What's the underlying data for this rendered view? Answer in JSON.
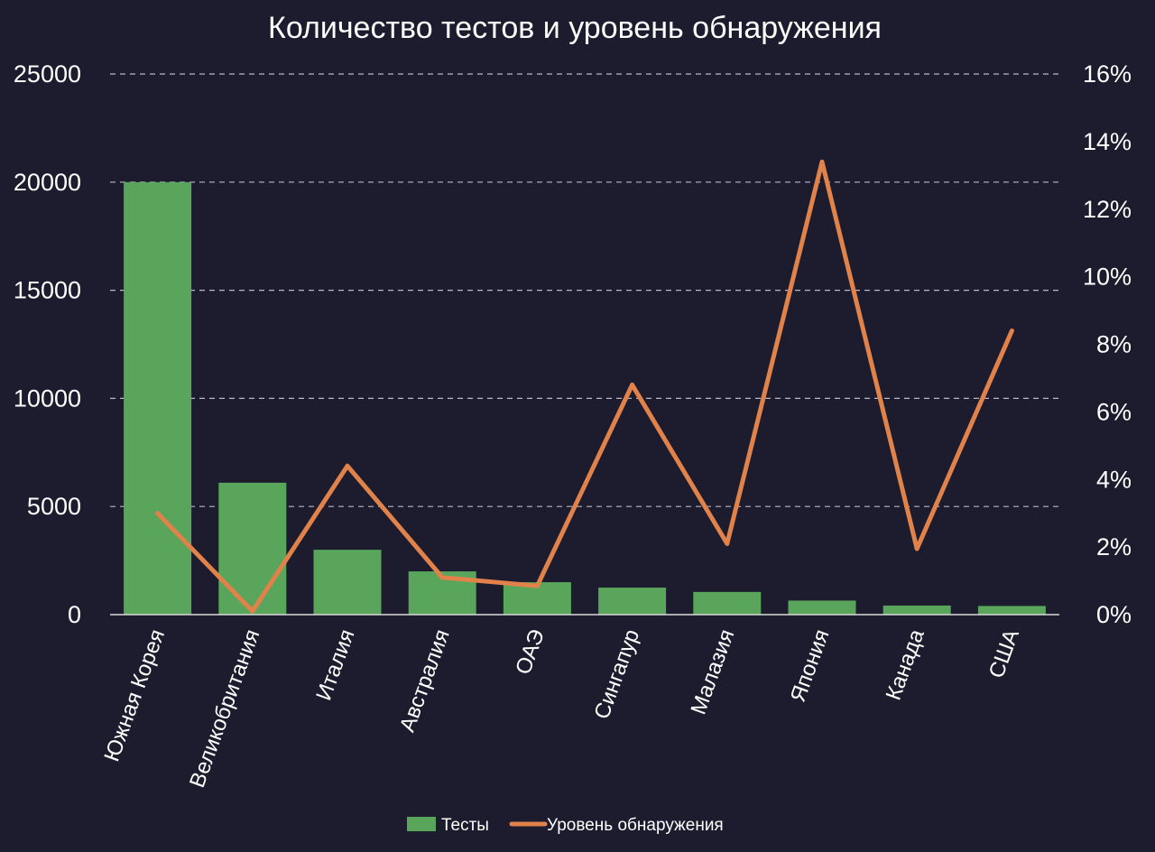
{
  "chart_data": {
    "type": "bar",
    "title": "Количество тестов и уровень обнаружения",
    "categories": [
      "Южная Корея",
      "Великобритания",
      "Италия",
      "Австралия",
      "ОАЭ",
      "Сингапур",
      "Малазия",
      "Япония",
      "Канада",
      "США"
    ],
    "series": [
      {
        "name": "Тесты",
        "type": "bar",
        "axis": "left",
        "color": "#5aa55c",
        "values": [
          20000,
          6100,
          3000,
          2000,
          1500,
          1250,
          1050,
          650,
          420,
          400
        ]
      },
      {
        "name": "Уровень обнаружения",
        "type": "line",
        "axis": "right",
        "color": "#e0824a",
        "values": [
          3.0,
          0.1,
          4.4,
          1.1,
          0.85,
          6.8,
          2.1,
          13.4,
          1.95,
          8.4
        ]
      }
    ],
    "y_left": {
      "min": 0,
      "max": 25000,
      "ticks": [
        "0",
        "5000",
        "10000",
        "15000",
        "20000",
        "25000"
      ],
      "tick_values": [
        0,
        5000,
        10000,
        15000,
        20000,
        25000
      ]
    },
    "y_right": {
      "min": 0,
      "max": 16,
      "ticks": [
        "0%",
        "2%",
        "4%",
        "6%",
        "8%",
        "10%",
        "12%",
        "14%",
        "16%"
      ],
      "tick_values": [
        0,
        2,
        4,
        6,
        8,
        10,
        12,
        14,
        16
      ]
    },
    "grid": true,
    "grid_style": "dashed",
    "legend": "bottom-center",
    "colors": {
      "background": "#1d1b2e",
      "text": "#ffffff",
      "grid": "#b9b8c4",
      "axis": "#d9d9d9"
    }
  }
}
